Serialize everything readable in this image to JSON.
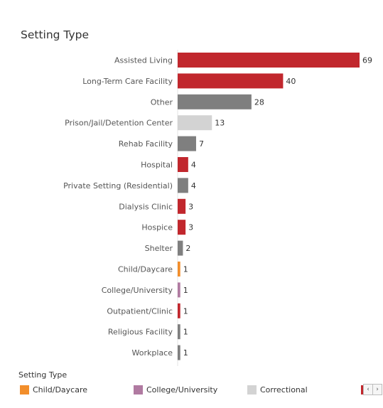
{
  "title": "Setting Type",
  "chart_data": {
    "type": "bar",
    "orientation": "horizontal",
    "title": "Setting Type",
    "categories": [
      "Assisted Living",
      "Long-Term Care Facility",
      "Other",
      "Prison/Jail/Detention Center",
      "Rehab Facility",
      "Hospital",
      "Private Setting (Residential)",
      "Dialysis Clinic",
      "Hospice",
      "Shelter",
      "Child/Daycare",
      "College/University",
      "Outpatient/Clinic",
      "Religious Facility",
      "Workplace"
    ],
    "values": [
      69,
      40,
      28,
      13,
      7,
      4,
      4,
      3,
      3,
      2,
      1,
      1,
      1,
      1,
      1
    ],
    "colors": [
      "#c1272d",
      "#c1272d",
      "#7f7f7f",
      "#d3d3d3",
      "#7f7f7f",
      "#c1272d",
      "#7f7f7f",
      "#c1272d",
      "#c1272d",
      "#7f7f7f",
      "#f28e2b",
      "#b07aa1",
      "#c1272d",
      "#7f7f7f",
      "#7f7f7f"
    ],
    "xlim": [
      0,
      69
    ],
    "grid": false
  },
  "legend": {
    "title": "Setting Type",
    "items": [
      {
        "label": "Child/Daycare",
        "color": "#f28e2b"
      },
      {
        "label": "College/University",
        "color": "#b07aa1"
      },
      {
        "label": "Correctional",
        "color": "#d3d3d3"
      },
      {
        "label": "",
        "color": "#c1272d"
      }
    ],
    "prev_icon": "‹",
    "next_icon": "›"
  }
}
